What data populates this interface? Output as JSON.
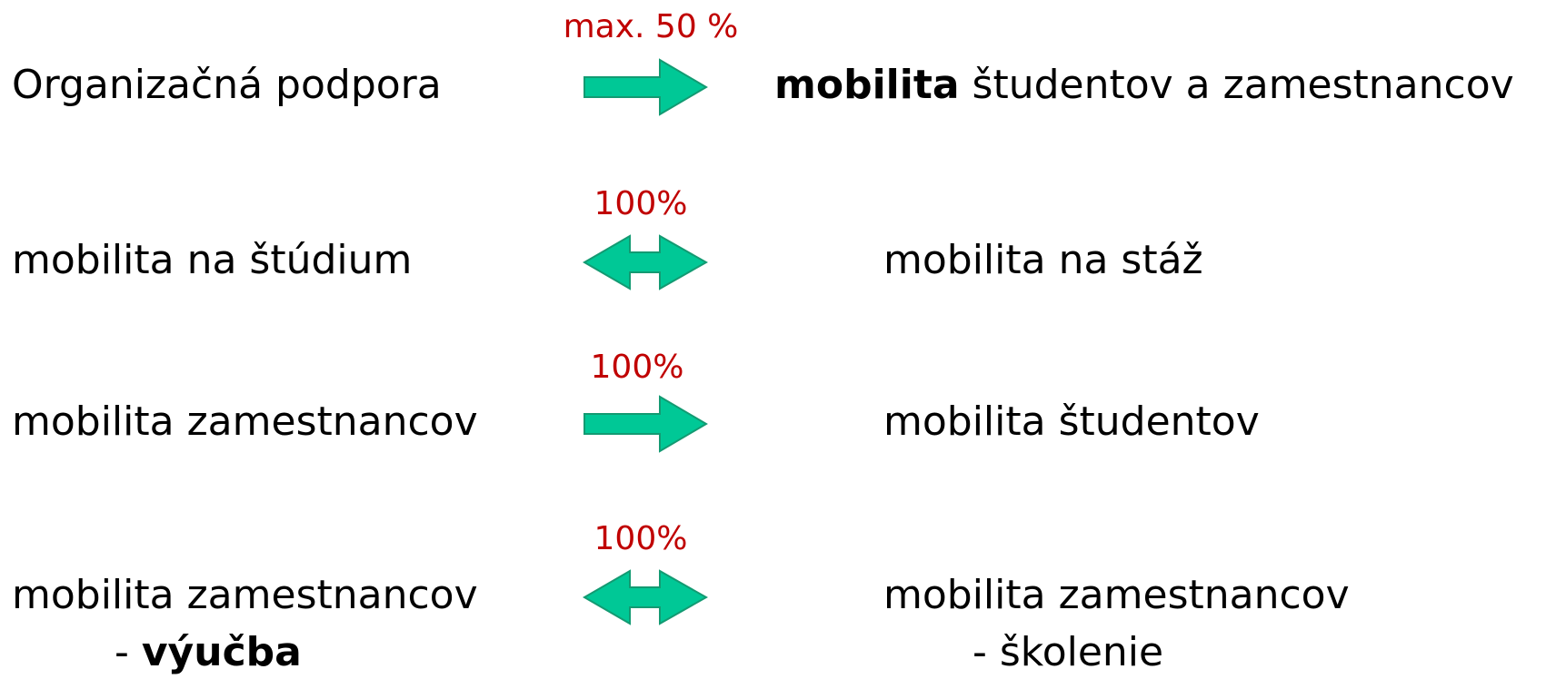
{
  "rows": [
    {
      "left": "Organizačná podpora",
      "label": "max. 50 %",
      "right": {
        "bold": "mobilita",
        "rest": " študentov a zamestnancov"
      }
    },
    {
      "left": "mobilita na štúdium",
      "label": "100%",
      "right": "mobilita na stáž"
    },
    {
      "left": "mobilita zamestnancov",
      "label": "100%",
      "right": "mobilita študentov"
    },
    {
      "left": "mobilita zamestnancov",
      "left_sub": {
        "dash": "- ",
        "bold": "výučba"
      },
      "label": "100%",
      "right": "mobilita zamestnancov",
      "right_sub": "- školenie"
    }
  ]
}
